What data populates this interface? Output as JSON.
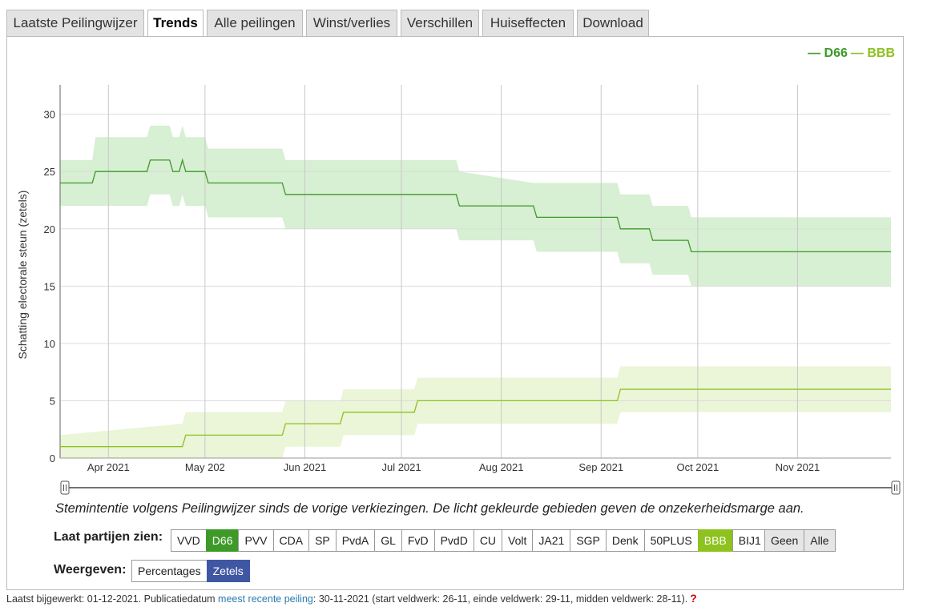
{
  "tabs": [
    "Laatste Peilingwijzer",
    "Trends",
    "Alle peilingen",
    "Winst/verlies",
    "Verschillen",
    "Huiseffecten",
    "Download"
  ],
  "active_tab": "Trends",
  "legend": [
    {
      "name": "D66",
      "color": "#3d9a29"
    },
    {
      "name": "BBB",
      "color": "#8dc21f"
    }
  ],
  "chart_data": {
    "type": "line",
    "ylabel": "Schatting electorale steun (zetels)",
    "ylim": [
      0,
      32
    ],
    "yticks": [
      0,
      5,
      10,
      15,
      20,
      25,
      30
    ],
    "xlim": [
      "2021-03-17",
      "2021-11-30"
    ],
    "xticks": [
      {
        "date": "2021-04-01",
        "label": "Apr 2021"
      },
      {
        "date": "2021-05-01",
        "label": "May 202"
      },
      {
        "date": "2021-06-01",
        "label": "Jun 2021"
      },
      {
        "date": "2021-07-01",
        "label": "Jul 2021"
      },
      {
        "date": "2021-08-01",
        "label": "Aug 2021"
      },
      {
        "date": "2021-09-01",
        "label": "Sep 2021"
      },
      {
        "date": "2021-10-01",
        "label": "Oct 2021"
      },
      {
        "date": "2021-11-01",
        "label": "Nov 2021"
      }
    ],
    "grid": true,
    "legend_position": "top-right",
    "series": [
      {
        "name": "D66",
        "color": "#3d9a29",
        "band_color": "#c9e9c3",
        "points": [
          {
            "x": "2021-03-17",
            "y": 24,
            "lo": 22,
            "hi": 26
          },
          {
            "x": "2021-03-27",
            "y": 24,
            "lo": 22,
            "hi": 26
          },
          {
            "x": "2021-03-28",
            "y": 25,
            "lo": 22,
            "hi": 28
          },
          {
            "x": "2021-04-13",
            "y": 25,
            "lo": 22,
            "hi": 28
          },
          {
            "x": "2021-04-14",
            "y": 26,
            "lo": 23,
            "hi": 29
          },
          {
            "x": "2021-04-20",
            "y": 26,
            "lo": 23,
            "hi": 29
          },
          {
            "x": "2021-04-21",
            "y": 25,
            "lo": 22,
            "hi": 28
          },
          {
            "x": "2021-04-23",
            "y": 25,
            "lo": 22,
            "hi": 28
          },
          {
            "x": "2021-04-24",
            "y": 26,
            "lo": 23,
            "hi": 29
          },
          {
            "x": "2021-04-25",
            "y": 25,
            "lo": 22,
            "hi": 28
          },
          {
            "x": "2021-05-01",
            "y": 25,
            "lo": 22,
            "hi": 28
          },
          {
            "x": "2021-05-02",
            "y": 24,
            "lo": 21,
            "hi": 27
          },
          {
            "x": "2021-05-25",
            "y": 24,
            "lo": 21,
            "hi": 27
          },
          {
            "x": "2021-05-26",
            "y": 23,
            "lo": 20,
            "hi": 26
          },
          {
            "x": "2021-07-18",
            "y": 23,
            "lo": 20,
            "hi": 26
          },
          {
            "x": "2021-07-19",
            "y": 22,
            "lo": 19,
            "hi": 25
          },
          {
            "x": "2021-08-11",
            "y": 22,
            "lo": 19,
            "hi": 24
          },
          {
            "x": "2021-08-12",
            "y": 21,
            "lo": 18,
            "hi": 24
          },
          {
            "x": "2021-09-06",
            "y": 21,
            "lo": 18,
            "hi": 24
          },
          {
            "x": "2021-09-07",
            "y": 20,
            "lo": 17,
            "hi": 23
          },
          {
            "x": "2021-09-16",
            "y": 20,
            "lo": 17,
            "hi": 23
          },
          {
            "x": "2021-09-17",
            "y": 19,
            "lo": 16,
            "hi": 22
          },
          {
            "x": "2021-09-28",
            "y": 19,
            "lo": 16,
            "hi": 22
          },
          {
            "x": "2021-09-29",
            "y": 18,
            "lo": 15,
            "hi": 21
          },
          {
            "x": "2021-11-30",
            "y": 18,
            "lo": 15,
            "hi": 21
          }
        ]
      },
      {
        "name": "BBB",
        "color": "#8dc21f",
        "band_color": "#e4f2c9",
        "points": [
          {
            "x": "2021-03-17",
            "y": 1,
            "lo": 0,
            "hi": 2
          },
          {
            "x": "2021-04-24",
            "y": 1,
            "lo": 0,
            "hi": 3
          },
          {
            "x": "2021-04-25",
            "y": 2,
            "lo": 0,
            "hi": 4
          },
          {
            "x": "2021-05-25",
            "y": 2,
            "lo": 0,
            "hi": 4
          },
          {
            "x": "2021-05-26",
            "y": 3,
            "lo": 1,
            "hi": 5
          },
          {
            "x": "2021-06-12",
            "y": 3,
            "lo": 1,
            "hi": 5
          },
          {
            "x": "2021-06-13",
            "y": 4,
            "lo": 2,
            "hi": 6
          },
          {
            "x": "2021-07-05",
            "y": 4,
            "lo": 2,
            "hi": 6
          },
          {
            "x": "2021-07-06",
            "y": 5,
            "lo": 3,
            "hi": 7
          },
          {
            "x": "2021-09-06",
            "y": 5,
            "lo": 3,
            "hi": 7
          },
          {
            "x": "2021-09-07",
            "y": 6,
            "lo": 4,
            "hi": 8
          },
          {
            "x": "2021-11-30",
            "y": 6,
            "lo": 4,
            "hi": 8
          }
        ]
      }
    ]
  },
  "caption": "Stemintentie volgens Peilingwijzer sinds de vorige verkiezingen. De licht gekleurde gebieden geven de onzekerheidsmarge aan.",
  "parties_label": "Laat partijen zien:",
  "parties": [
    "VVD",
    "D66",
    "PVV",
    "CDA",
    "SP",
    "PvdA",
    "GL",
    "FvD",
    "PvdD",
    "CU",
    "Volt",
    "JA21",
    "SGP",
    "Denk",
    "50PLUS",
    "BBB",
    "BIJ1"
  ],
  "selected_parties": [
    "D66",
    "BBB"
  ],
  "party_colors": {
    "D66": "#3d9a29",
    "BBB": "#8dc21f"
  },
  "quick_buttons": [
    "Geen",
    "Alle"
  ],
  "display_label": "Weergeven:",
  "display_options": [
    "Percentages",
    "Zetels"
  ],
  "display_selected": "Zetels",
  "footer": {
    "prefix": "Laatst bijgewerkt: 01-12-2021. Publicatiedatum ",
    "link": "meest recente peiling",
    "suffix": ": 30-11-2021 (start veldwerk: 26-11, einde veldwerk: 29-11, midden veldwerk: 28-11).",
    "help": "?"
  }
}
